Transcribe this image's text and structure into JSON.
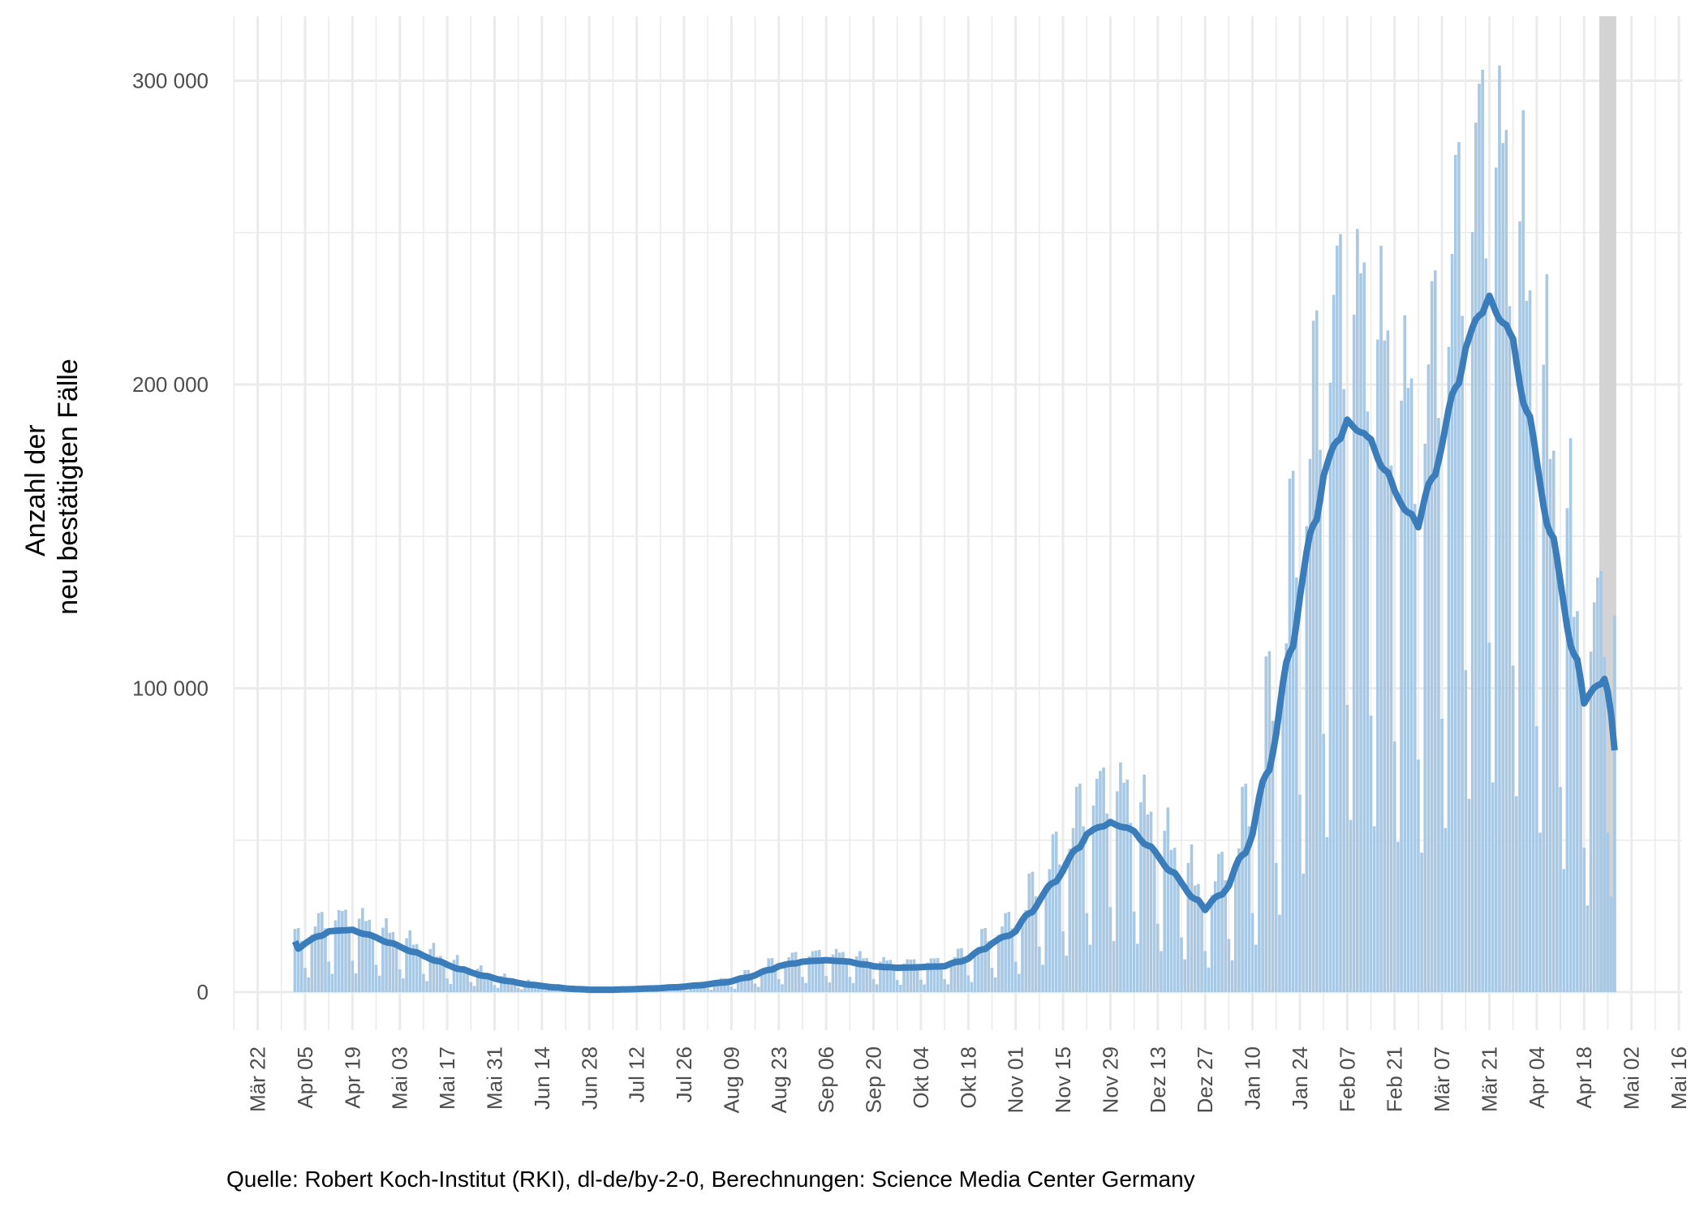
{
  "chart_data": {
    "type": "bar",
    "title": "",
    "ylabel_lines": [
      "Anzahl der",
      "neu bestätigten Fälle"
    ],
    "xlabel": "",
    "caption": "Quelle: Robert Koch-Institut (RKI), dl-de/by-2-0, Berechnungen: Science Media Center Germany",
    "ylim": [
      0,
      320000
    ],
    "y_ticks": [
      0,
      100000,
      200000,
      300000
    ],
    "y_tick_labels": [
      "0",
      "100 000",
      "200 000",
      "300 000"
    ],
    "x_start_date": "2020-03-22",
    "x_end_date": "2021-05-16",
    "x_tick_labels": [
      "Mär 22",
      "Apr 05",
      "Apr 19",
      "Mai 03",
      "Mai 17",
      "Mai 31",
      "Jun 14",
      "Jun 28",
      "Jul 12",
      "Jul 26",
      "Aug 09",
      "Aug 23",
      "Sep 06",
      "Sep 20",
      "Okt 04",
      "Okt 18",
      "Nov 01",
      "Nov 15",
      "Nov 29",
      "Dez 13",
      "Dez 27",
      "Jan 10",
      "Jan 24",
      "Feb 07",
      "Feb 21",
      "Mär 07",
      "Mär 21",
      "Apr 04",
      "Apr 18",
      "Mai 02",
      "Mai 16"
    ],
    "x_tick_interval_days": 14,
    "first_bar_date": "2020-04-02",
    "last_bar_date": "2021-04-27",
    "incomplete_period": [
      "2021-04-23",
      "2021-04-27"
    ],
    "grid": true,
    "colors": {
      "bars": "#a8c8e4",
      "line": "#3a7dba",
      "incomplete_band": "#d3d3d3",
      "grid": "#ebebeb"
    },
    "series": [
      {
        "name": "daily_new_cases",
        "type": "bar",
        "values": [
          20800,
          21100,
          16800,
          8000,
          4800,
          18900,
          21600,
          26000,
          26400,
          21000,
          10000,
          6000,
          23600,
          27000,
          26700,
          27100,
          21500,
          10300,
          6200,
          24200,
          27700,
          23400,
          23800,
          18900,
          9000,
          5400,
          21200,
          24300,
          19500,
          19800,
          15800,
          7500,
          4500,
          17700,
          20300,
          15600,
          15800,
          12600,
          6000,
          3600,
          14200,
          16200,
          11700,
          11900,
          9500,
          4500,
          2700,
          10600,
          12200,
          8500,
          8600,
          6800,
          3300,
          2000,
          7700,
          8800,
          5900,
          5900,
          4700,
          2300,
          1400,
          5300,
          6100,
          3900,
          4000,
          3200,
          1500,
          900,
          3500,
          4100,
          2600,
          2600,
          2100,
          1000,
          600,
          2400,
          2700,
          1600,
          1600,
          1300,
          600,
          400,
          1400,
          1600,
          1000,
          1100,
          800,
          400,
          200,
          900,
          1100,
          1000,
          1100,
          800,
          400,
          200,
          900,
          1100,
          1300,
          1300,
          1100,
          500,
          300,
          1200,
          1400,
          1700,
          1700,
          1400,
          700,
          400,
          1500,
          1800,
          2300,
          2400,
          1900,
          900,
          500,
          2100,
          2400,
          3300,
          3300,
          2600,
          1300,
          800,
          3000,
          3400,
          4600,
          4600,
          3700,
          1800,
          1100,
          4100,
          4700,
          7200,
          7300,
          5800,
          2800,
          1700,
          6500,
          7400,
          11100,
          11200,
          8900,
          4300,
          2600,
          10000,
          11500,
          13000,
          13200,
          10500,
          5000,
          3000,
          11800,
          13500,
          13700,
          13900,
          11000,
          5300,
          3200,
          12400,
          14200,
          13000,
          13200,
          10500,
          5000,
          3000,
          11800,
          13500,
          11100,
          11200,
          8900,
          4300,
          2600,
          10000,
          11500,
          10400,
          10600,
          8400,
          4000,
          2400,
          9400,
          10800,
          10700,
          10800,
          8600,
          4100,
          2500,
          9700,
          11100,
          11100,
          11200,
          8900,
          4300,
          2600,
          10000,
          11500,
          14300,
          14500,
          11600,
          5500,
          3300,
          13000,
          14900,
          20800,
          21100,
          16800,
          8000,
          4800,
          18900,
          21600,
          26000,
          26400,
          21000,
          10000,
          6000,
          23600,
          27000,
          39000,
          39600,
          31500,
          15000,
          9000,
          35400,
          40500,
          52000,
          52800,
          42000,
          20000,
          12000,
          47200,
          54000,
          67600,
          68600,
          54600,
          26000,
          15600,
          61400,
          70200,
          72800,
          73900,
          58800,
          28000,
          16800,
          66100,
          75600,
          68900,
          70000,
          55700,
          26500,
          15900,
          62500,
          71600,
          58500,
          59400,
          47300,
          22500,
          13500,
          53100,
          60800,
          46800,
          47500,
          37800,
          18000,
          10800,
          42500,
          48600,
          35100,
          35600,
          28400,
          13500,
          8100,
          31900,
          36500,
          45500,
          46200,
          36800,
          17500,
          10500,
          41300,
          47300,
          67600,
          68600,
          54600,
          26000,
          15600,
          61400,
          70200,
          110500,
          112200,
          89300,
          42500,
          25500,
          100300,
          114800,
          169000,
          171600,
          136500,
          65000,
          39000,
          153400,
          175500,
          221000,
          224400,
          178500,
          85000,
          51000,
          200600,
          229500,
          245700,
          249500,
          198500,
          94500,
          56700,
          223000,
          251200,
          236600,
          240200,
          191100,
          91000,
          54600,
          214800,
          245700,
          214500,
          217800,
          173300,
          82500,
          49500,
          194700,
          222800,
          198900,
          202000,
          160700,
          76500,
          45900,
          180500,
          206600,
          234000,
          237600,
          189000,
          90000,
          54000,
          212400,
          243000,
          275600,
          279800,
          222600,
          106000,
          63600,
          250200,
          286200,
          299000,
          303600,
          241500,
          115000,
          69000,
          271400,
          305000,
          279500,
          283800,
          225800,
          107500,
          64500,
          253700,
          290300,
          227500,
          231000,
          183800,
          87500,
          52500,
          206500,
          236300,
          175500,
          178200,
          141800,
          67500,
          40500,
          159300,
          182300,
          123500,
          125400,
          99800,
          47500,
          28500,
          112100,
          128300,
          136500,
          138600,
          110300,
          52500,
          31500,
          124000
        ]
      },
      {
        "name": "7_day_average",
        "type": "line",
        "derived_from": "daily_new_cases"
      }
    ]
  }
}
